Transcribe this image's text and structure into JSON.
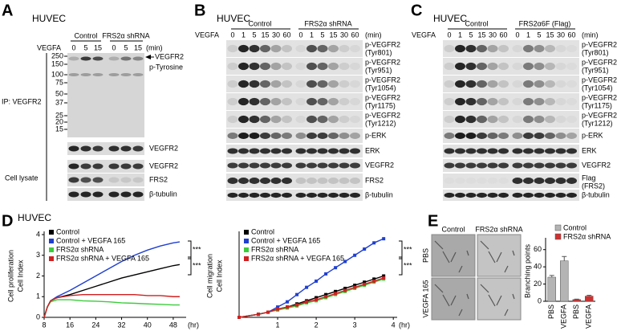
{
  "panels": {
    "A": {
      "letter": "A",
      "cell": "HUVEC",
      "treatment": "VEGFA",
      "groups": [
        "Control",
        "FRS2α shRNA"
      ],
      "lanes": [
        0,
        5,
        15
      ],
      "time_unit": "(min)",
      "markers": [
        250,
        150,
        100,
        75,
        50,
        37,
        25,
        20,
        15
      ],
      "ip_label": "IP: VEGFR2",
      "arrow_label": "VEGFR2",
      "ip_blot_label": "p-Tyrosine",
      "lysate_label": "Cell lysate",
      "blots": [
        "VEGFR2",
        "VEGFR2",
        "FRS2",
        "β-tubulin"
      ]
    },
    "B": {
      "letter": "B",
      "cell": "HUVEC",
      "treatment": "VEGFA",
      "groups": [
        "Control",
        "FRS2α shRNA"
      ],
      "lanes": [
        0,
        1,
        5,
        15,
        30,
        60
      ],
      "time_unit": "(min)",
      "blots": [
        [
          "p-VEGFR2",
          "(Tyr801)"
        ],
        [
          "p-VEGFR2",
          "(Tyr951)"
        ],
        [
          "p-VEGFR2",
          "(Tyr1054)"
        ],
        [
          "p-VEGFR2",
          "(Tyr1175)"
        ],
        [
          "p-VEGFR2",
          "(Tyr1212)"
        ],
        [
          "p-ERK"
        ],
        [
          "ERK"
        ],
        [
          "VEGFR2"
        ],
        [
          "FRS2"
        ],
        [
          "β-tubulin"
        ]
      ]
    },
    "C": {
      "letter": "C",
      "cell": "HUVEC",
      "treatment": "VEGFA",
      "groups": [
        "Control",
        "FRS2α6F (Flag)"
      ],
      "lanes": [
        0,
        1,
        5,
        15,
        30,
        60
      ],
      "time_unit": "(min)",
      "blots": [
        [
          "p-VEGFR2",
          "(Tyr801)"
        ],
        [
          "p-VEGFR2",
          "(Tyr951)"
        ],
        [
          "p-VEGFR2",
          "(Tyr1054)"
        ],
        [
          "p-VEGFR2",
          "(Tyr1175)"
        ],
        [
          "p-VEGFR2",
          "(Tyr1212)"
        ],
        [
          "p-ERK"
        ],
        [
          "ERK"
        ],
        [
          "VEGFR2"
        ],
        [
          "Flag",
          "(FRS2)"
        ],
        [
          "β-tubulin"
        ]
      ]
    },
    "D": {
      "letter": "D",
      "cell": "HUVEC"
    },
    "E": {
      "letter": "E",
      "columns": [
        "Control",
        "FRS2α shRNA"
      ],
      "rows": [
        "PBS",
        "VEGFA 165"
      ]
    }
  },
  "chart_data": [
    {
      "type": "line",
      "ylabel": [
        "Cell proliferation",
        "Cell Index"
      ],
      "xlabel": "(hr)",
      "x": [
        8,
        9,
        10,
        12,
        16,
        20,
        24,
        28,
        32,
        36,
        40,
        44,
        48,
        50
      ],
      "series": [
        {
          "name": "Control",
          "color": "#000000",
          "values": [
            0,
            0.5,
            0.8,
            0.95,
            1.1,
            1.3,
            1.5,
            1.7,
            1.9,
            2.05,
            2.2,
            2.35,
            2.5,
            2.55
          ]
        },
        {
          "name": "Control + VEGFA 165",
          "color": "#1f3fd0",
          "values": [
            0,
            0.5,
            0.8,
            1.0,
            1.3,
            1.65,
            2.0,
            2.35,
            2.7,
            3.0,
            3.25,
            3.45,
            3.6,
            3.65
          ]
        },
        {
          "name": "FRS2α shRNA",
          "color": "#3ccc3c",
          "values": [
            0,
            0.5,
            0.75,
            0.85,
            0.85,
            0.8,
            0.78,
            0.75,
            0.7,
            0.68,
            0.65,
            0.63,
            0.6,
            0.6
          ]
        },
        {
          "name": "FRS2α shRNA + VEGFA 165",
          "color": "#d02020",
          "values": [
            0,
            0.5,
            0.8,
            0.95,
            1.05,
            1.1,
            1.1,
            1.1,
            1.1,
            1.1,
            1.05,
            1.05,
            1.0,
            1.0
          ]
        }
      ],
      "xlim": [
        8,
        52
      ],
      "xticks": [
        8,
        16,
        24,
        32,
        40,
        48
      ],
      "ylim": [
        0,
        4
      ],
      "yticks": [
        0,
        1,
        2,
        3,
        4
      ],
      "markers": false,
      "annotations": [
        "***",
        "***"
      ]
    },
    {
      "type": "line",
      "ylabel": [
        "Cell migration",
        "Cell Index"
      ],
      "xlabel": "(hr)",
      "x": [
        0,
        0.5,
        0.75,
        1,
        1.25,
        1.5,
        1.75,
        2,
        2.25,
        2.5,
        2.75,
        3,
        3.25,
        3.5,
        3.75
      ],
      "series": [
        {
          "name": "Control",
          "color": "#000000",
          "values": [
            0,
            0.03,
            0.05,
            0.08,
            0.1,
            0.13,
            0.16,
            0.19,
            0.22,
            0.25,
            0.28,
            0.31,
            0.34,
            0.37,
            0.4
          ]
        },
        {
          "name": "Control + VEGFA 165",
          "color": "#1f3fd0",
          "values": [
            0,
            0.03,
            0.05,
            0.1,
            0.15,
            0.22,
            0.29,
            0.35,
            0.42,
            0.48,
            0.54,
            0.6,
            0.66,
            0.72,
            0.76
          ]
        },
        {
          "name": "FRS2α shRNA",
          "color": "#3ccc3c",
          "values": [
            0,
            0.03,
            0.05,
            0.07,
            0.09,
            0.11,
            0.14,
            0.16,
            0.19,
            0.22,
            0.25,
            0.28,
            0.31,
            0.34,
            0.37
          ]
        },
        {
          "name": "FRS2α shRNA + VEGFA 165",
          "color": "#d02020",
          "values": [
            0,
            0.03,
            0.05,
            0.08,
            0.1,
            0.12,
            0.15,
            0.17,
            0.2,
            0.23,
            0.26,
            0.29,
            0.32,
            0.35,
            0.38
          ]
        }
      ],
      "xlim": [
        0,
        4.1
      ],
      "xticks": [
        1,
        2,
        3,
        4
      ],
      "ylim": [
        0,
        0.8
      ],
      "markers": true,
      "annotations": [
        "***",
        "***"
      ]
    },
    {
      "type": "bar",
      "ylabel": "Branching points",
      "categories": [
        "PBS",
        "VEGFA"
      ],
      "series": [
        {
          "name": "Control",
          "color": "#b4b4b4",
          "values": [
            28,
            47
          ],
          "errors": [
            2,
            5
          ]
        },
        {
          "name": "FRS2α shRNA",
          "color": "#d03030",
          "values": [
            2,
            6
          ],
          "errors": [
            0.5,
            1
          ]
        }
      ],
      "ylim": [
        0,
        70
      ],
      "yticks": [
        0,
        20,
        40,
        60
      ]
    }
  ]
}
